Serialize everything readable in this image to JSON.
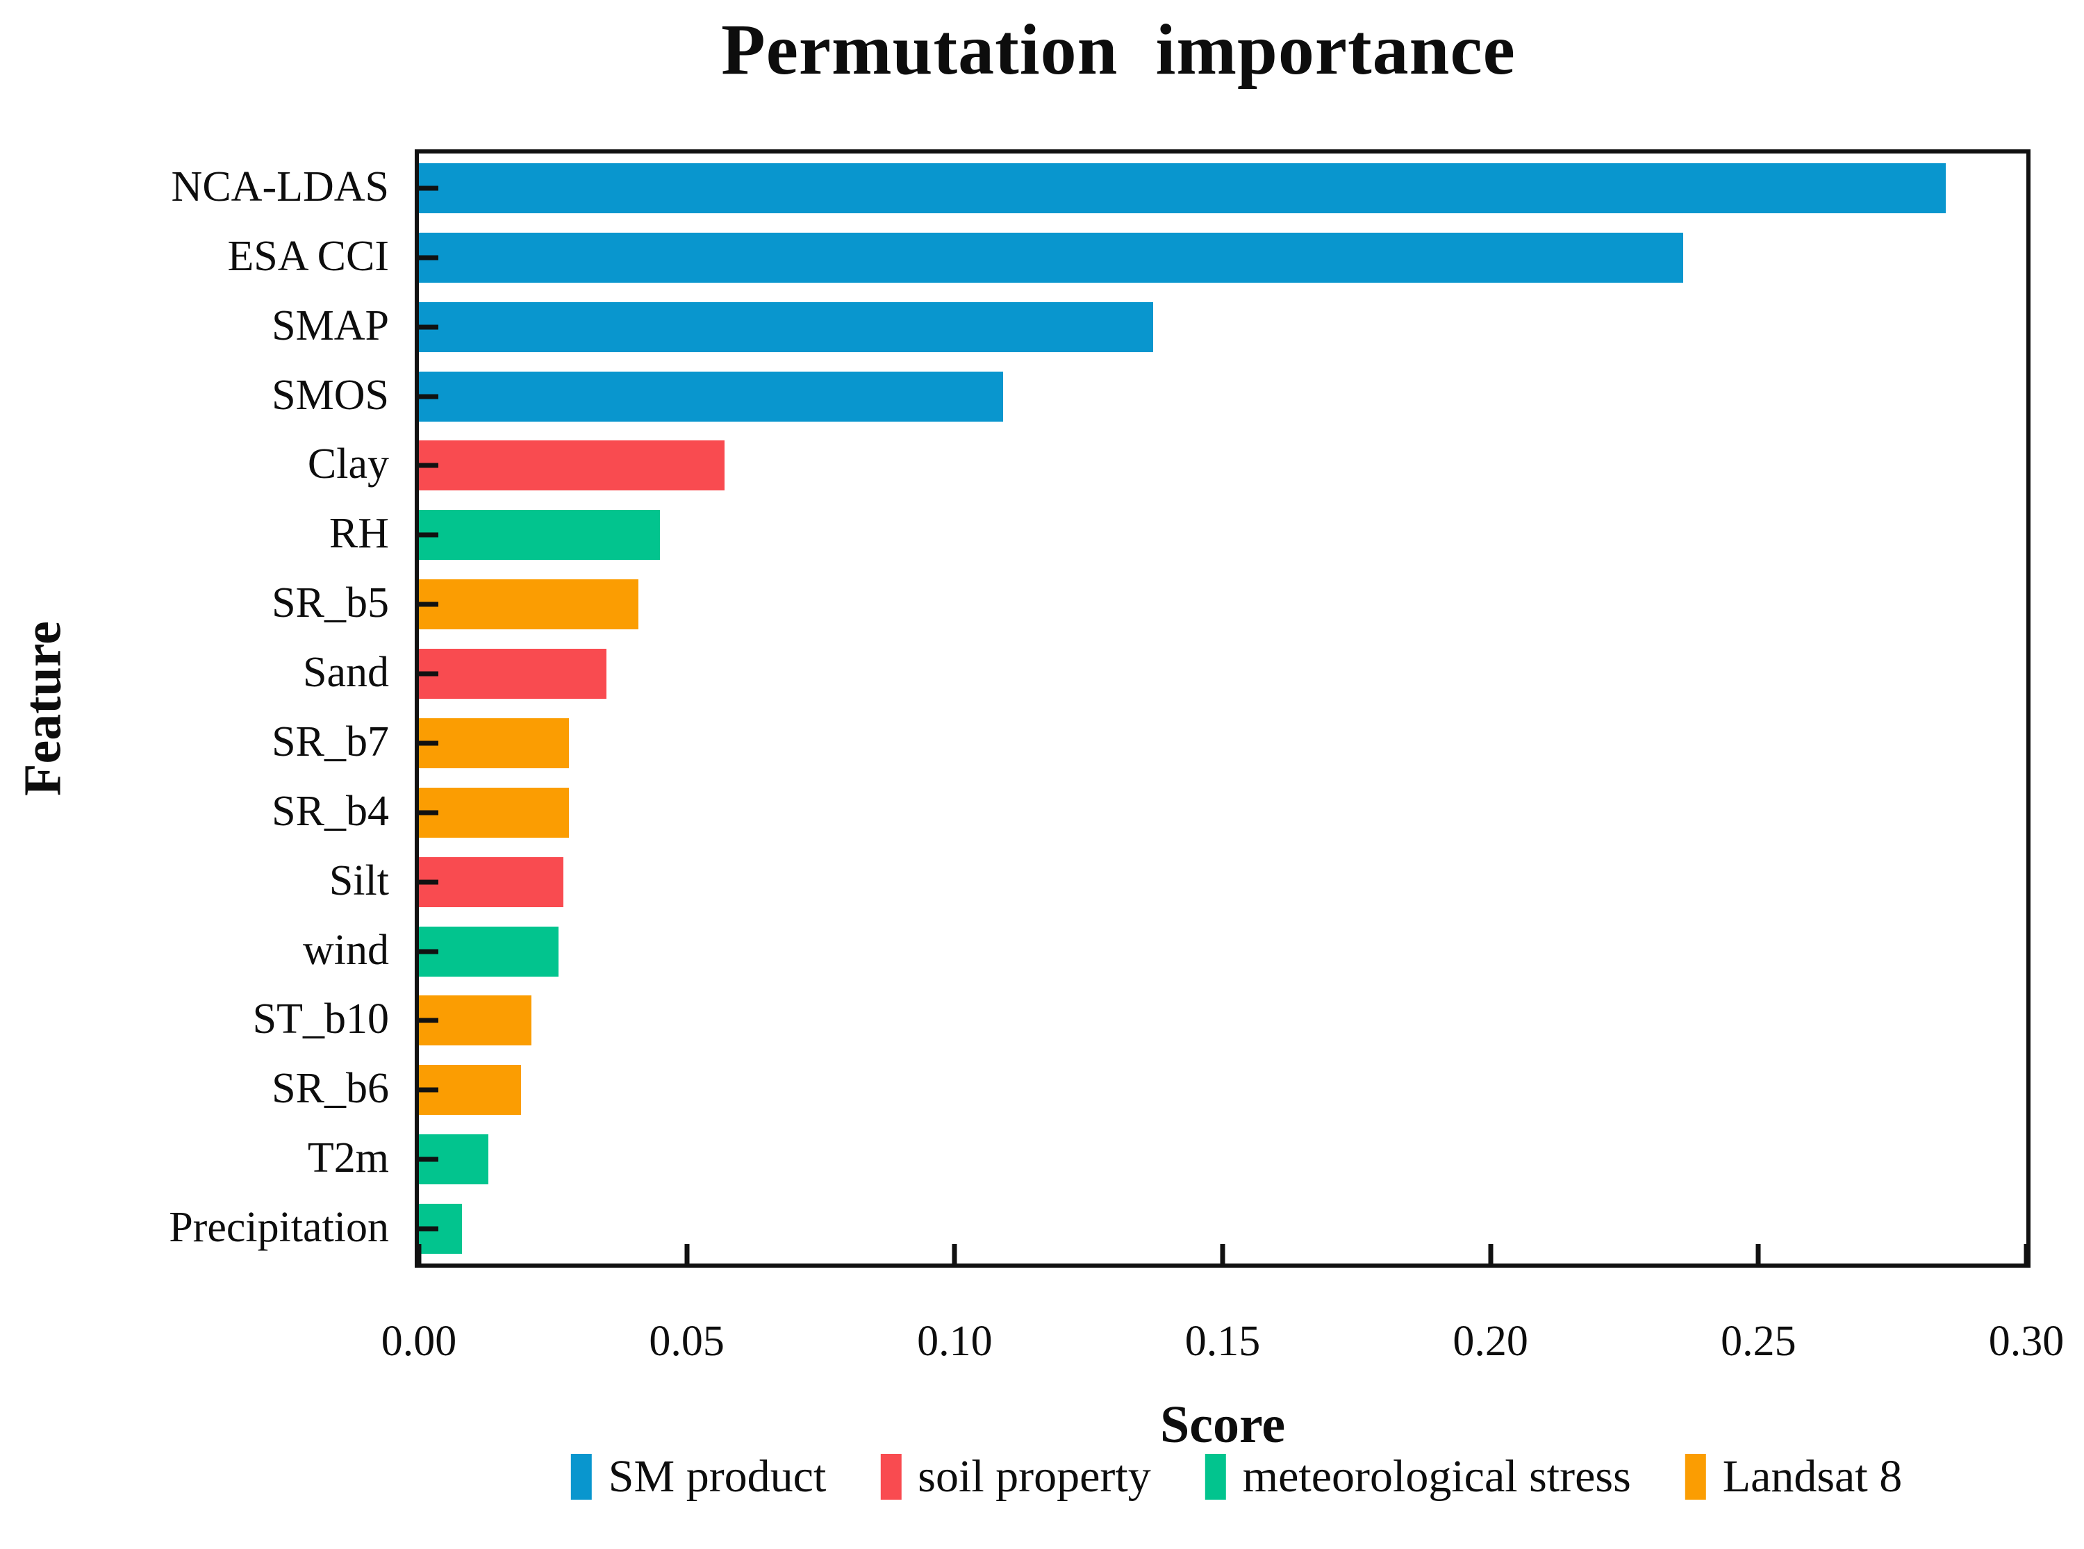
{
  "title": "Permutation  importance",
  "chart_data": {
    "type": "bar",
    "orientation": "horizontal",
    "title": "Permutation  importance",
    "xlabel": "Score",
    "ylabel": "Feature",
    "xlim": [
      0,
      0.3
    ],
    "xticks": [
      "0.00",
      "0.05",
      "0.10",
      "0.15",
      "0.20",
      "0.25",
      "0.30"
    ],
    "grid": false,
    "legend_position": "bottom",
    "categories": [
      "NCA-LDAS",
      "ESA CCI",
      "SMAP",
      "SMOS",
      "Clay",
      "RH",
      "SR_b5",
      "Sand",
      "SR_b7",
      "SR_b4",
      "Silt",
      "wind",
      "ST_b10",
      "SR_b6",
      "T2m",
      "Precipitation"
    ],
    "values": [
      0.285,
      0.236,
      0.137,
      0.109,
      0.057,
      0.045,
      0.041,
      0.035,
      0.028,
      0.028,
      0.027,
      0.026,
      0.021,
      0.019,
      0.013,
      0.008
    ],
    "groups": [
      "SM product",
      "SM product",
      "SM product",
      "SM product",
      "soil property",
      "meteorological stress",
      "Landsat 8",
      "soil property",
      "Landsat 8",
      "Landsat 8",
      "soil property",
      "meteorological stress",
      "Landsat 8",
      "Landsat 8",
      "meteorological stress",
      "meteorological stress"
    ],
    "group_colors": {
      "SM product": "#0996ce",
      "soil property": "#f94b50",
      "meteorological stress": "#02c48e",
      "Landsat 8": "#fb9d02"
    },
    "legend_entries": [
      {
        "label": "SM product",
        "color": "#0996ce"
      },
      {
        "label": "soil property",
        "color": "#f94b50"
      },
      {
        "label": "meteorological stress",
        "color": "#02c48e"
      },
      {
        "label": "Landsat 8",
        "color": "#fb9d02"
      }
    ],
    "frame_color": "#111111",
    "text_color": "#0d0d0d"
  }
}
